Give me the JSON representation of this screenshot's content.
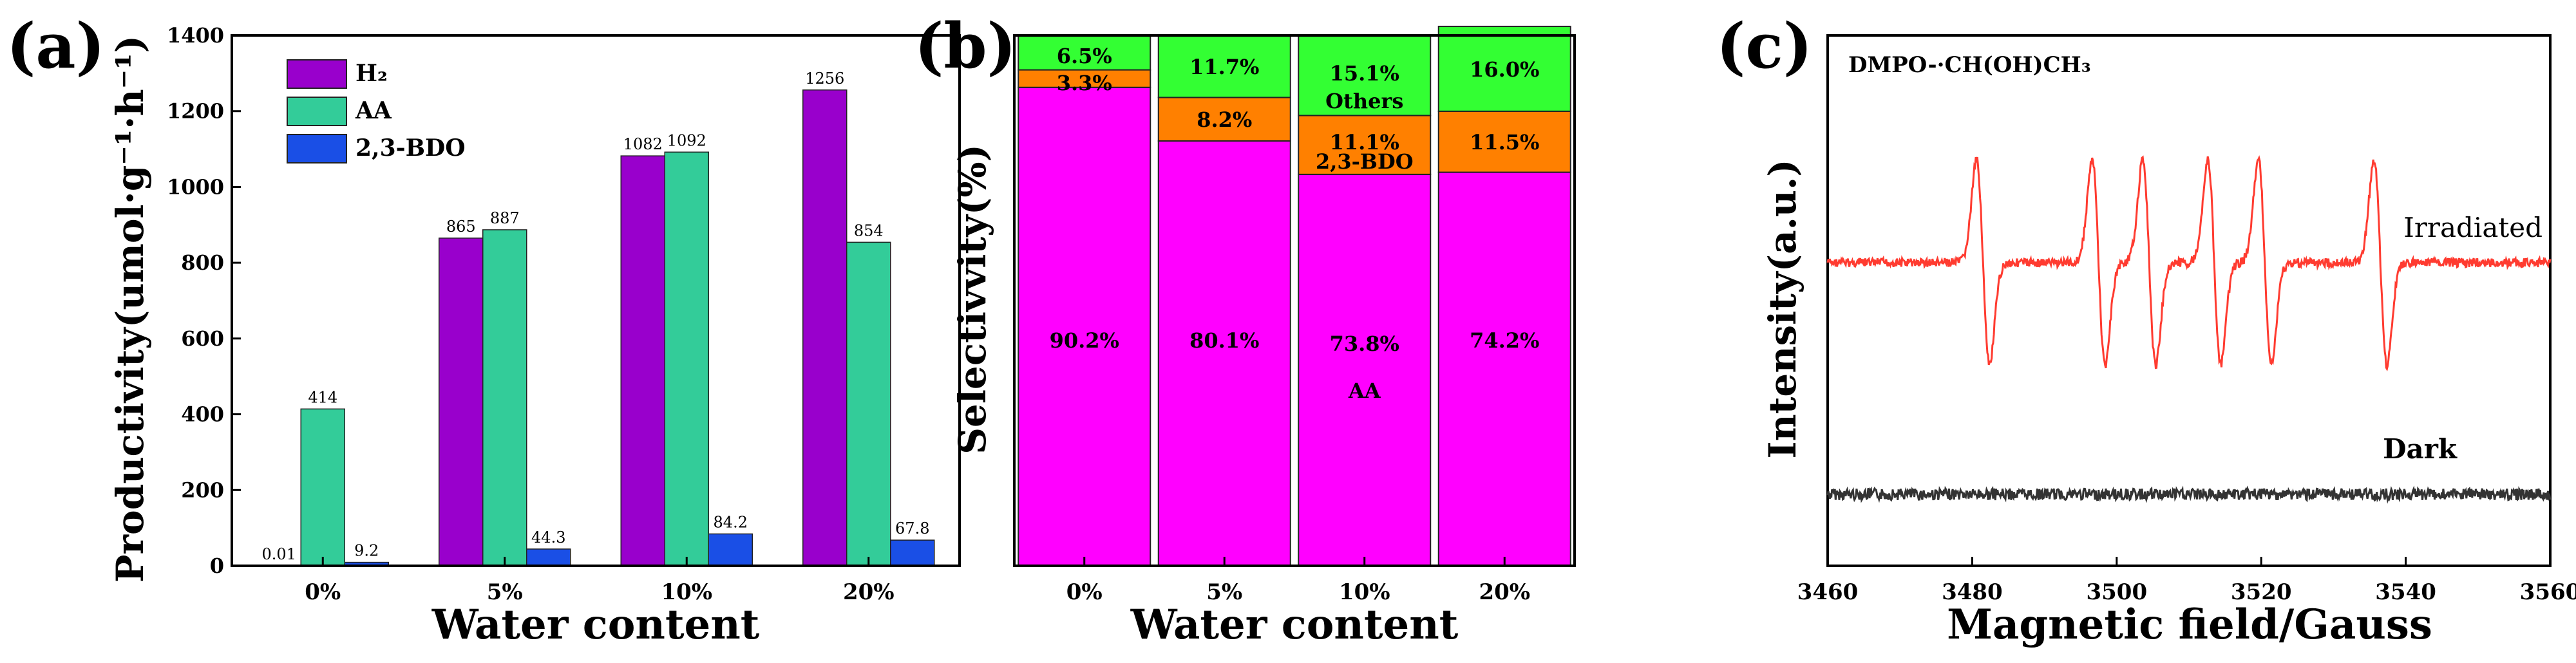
{
  "panels": {
    "a": {
      "label": "(a)"
    },
    "b": {
      "label": "(b)"
    },
    "c": {
      "label": "(c)"
    }
  },
  "chart_data": [
    {
      "type": "bar",
      "title": "",
      "xlabel": "Water content",
      "ylabel": "Productivity(umol·g⁻¹·h⁻¹)",
      "ylim": [
        0,
        1400
      ],
      "yticks": [
        0,
        200,
        400,
        600,
        800,
        1000,
        1200,
        1400
      ],
      "categories": [
        "0%",
        "5%",
        "10%",
        "20%"
      ],
      "series": [
        {
          "name": "H₂",
          "color": "#9900CC",
          "values": [
            0.01,
            865,
            1082,
            1256
          ],
          "labels": [
            "0.01",
            "865",
            "1082",
            "1256"
          ]
        },
        {
          "name": "AA",
          "color": "#33CC99",
          "values": [
            414,
            887,
            1092,
            854
          ],
          "labels": [
            "414",
            "887",
            "1092",
            "854"
          ]
        },
        {
          "name": "2,3-BDO",
          "color": "#1A4FE6",
          "values": [
            9.2,
            44.3,
            84.2,
            67.8
          ],
          "labels": [
            "9.2",
            "44.3",
            "84.2",
            "67.8"
          ]
        }
      ],
      "legend_position": "top-left"
    },
    {
      "type": "bar",
      "stacked": true,
      "xlabel": "Water content",
      "ylabel": "Selectivvity(%)",
      "ylim": [
        0,
        100
      ],
      "categories": [
        "0%",
        "5%",
        "10%",
        "20%"
      ],
      "series": [
        {
          "name": "AA",
          "color": "#FF00FF",
          "values": [
            90.2,
            80.1,
            73.8,
            74.2
          ],
          "labels": [
            "90.2%",
            "80.1%",
            "73.8%",
            "74.2%"
          ]
        },
        {
          "name": "2,3-BDO",
          "color": "#FF8000",
          "values": [
            3.3,
            8.2,
            11.1,
            11.5
          ],
          "labels": [
            "3.3%",
            "8.2%",
            "11.1%",
            "11.5%"
          ]
        },
        {
          "name": "Others",
          "color": "#33FF33",
          "values": [
            6.5,
            11.7,
            15.1,
            16.0
          ],
          "labels": [
            "6.5%",
            "11.7%",
            "15.1%",
            "16.0%"
          ]
        }
      ],
      "annotations": [
        "Others",
        "2,3-BDO",
        "AA"
      ]
    },
    {
      "type": "line",
      "title": "DMPO-·CH(OH)CH₃",
      "xlabel": "Magnetic field/Gauss",
      "ylabel": "Intensity(a.u.)",
      "xlim": [
        3460,
        3560
      ],
      "xticks": [
        3460,
        3480,
        3500,
        3520,
        3540,
        3560
      ],
      "peaks_gauss": [
        3481.5,
        3497.5,
        3504.5,
        3513.5,
        3520.5,
        3536.5
      ],
      "series": [
        {
          "name": "Irradiated",
          "color": "#FF3B30"
        },
        {
          "name": "Dark",
          "color": "#333333"
        }
      ]
    }
  ]
}
